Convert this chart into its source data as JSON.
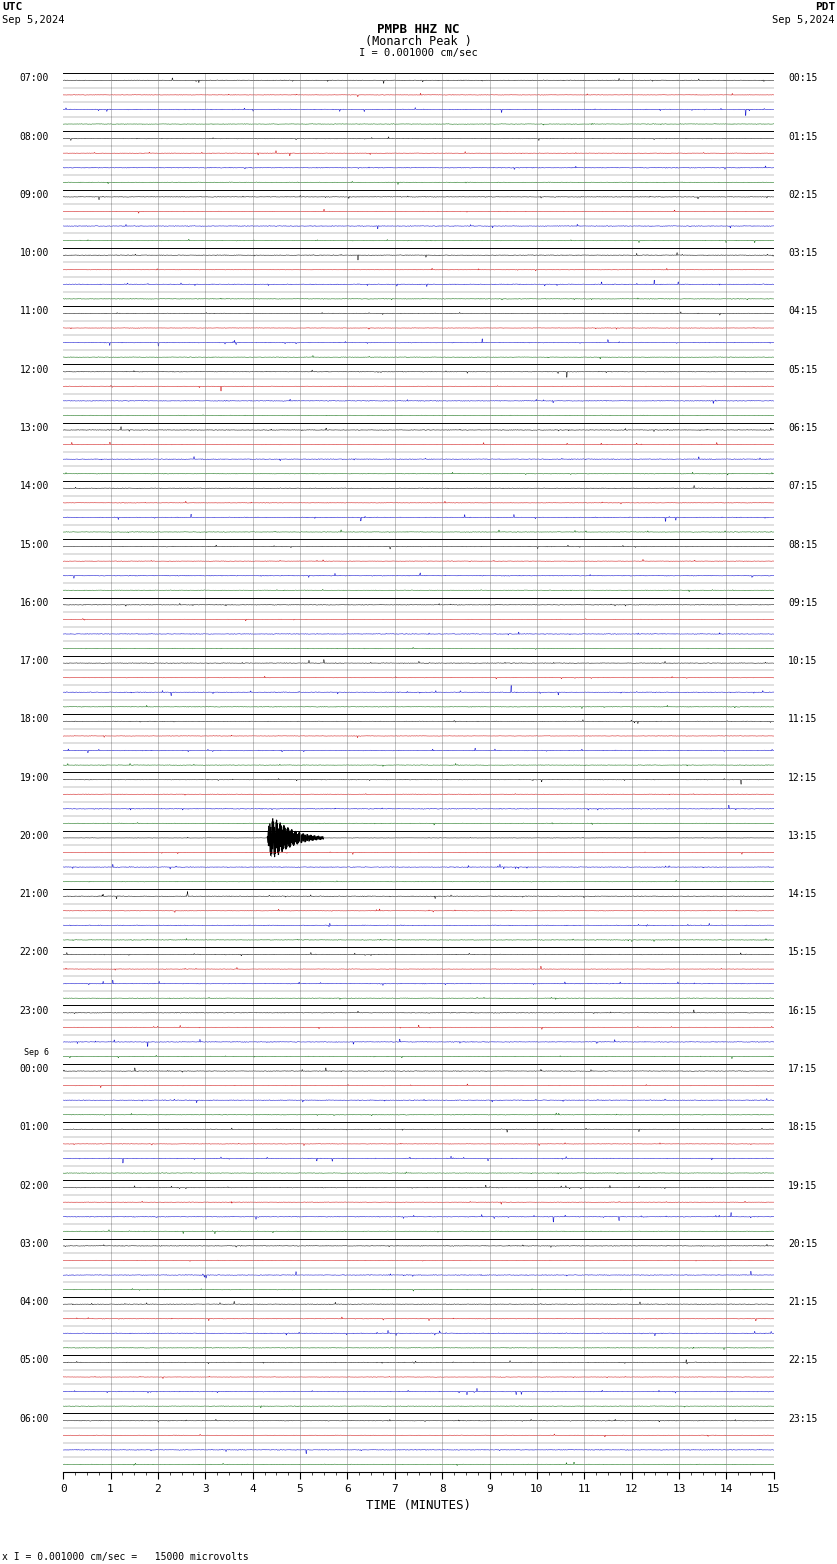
{
  "title_line1": "PMPB HHZ NC",
  "title_line2": "(Monarch Peak )",
  "scale_text": "I = 0.001000 cm/sec",
  "utc_label": "UTC",
  "utc_date": "Sep 5,2024",
  "pdt_label": "PDT",
  "pdt_date": "Sep 5,2024",
  "bottom_label": "x I = 0.001000 cm/sec =   15000 microvolts",
  "xlabel": "TIME (MINUTES)",
  "background_color": "#ffffff",
  "trace_colors": [
    "#000000",
    "#cc0000",
    "#0000cc",
    "#006600"
  ],
  "grid_color": "#888888",
  "hour_label_color": "#000000",
  "rows": [
    {
      "utc": "07:00",
      "pdt": "00:15"
    },
    {
      "utc": "08:00",
      "pdt": "01:15"
    },
    {
      "utc": "09:00",
      "pdt": "02:15"
    },
    {
      "utc": "10:00",
      "pdt": "03:15"
    },
    {
      "utc": "11:00",
      "pdt": "04:15"
    },
    {
      "utc": "12:00",
      "pdt": "05:15"
    },
    {
      "utc": "13:00",
      "pdt": "06:15"
    },
    {
      "utc": "14:00",
      "pdt": "07:15"
    },
    {
      "utc": "15:00",
      "pdt": "08:15"
    },
    {
      "utc": "16:00",
      "pdt": "09:15"
    },
    {
      "utc": "17:00",
      "pdt": "10:15"
    },
    {
      "utc": "18:00",
      "pdt": "11:15"
    },
    {
      "utc": "19:00",
      "pdt": "12:15"
    },
    {
      "utc": "20:00",
      "pdt": "13:15"
    },
    {
      "utc": "21:00",
      "pdt": "14:15"
    },
    {
      "utc": "22:00",
      "pdt": "15:15"
    },
    {
      "utc": "23:00",
      "pdt": "16:15"
    },
    {
      "utc": "00:00",
      "pdt": "17:15",
      "day_change": true
    },
    {
      "utc": "01:00",
      "pdt": "18:15"
    },
    {
      "utc": "02:00",
      "pdt": "19:15"
    },
    {
      "utc": "03:00",
      "pdt": "20:15"
    },
    {
      "utc": "04:00",
      "pdt": "21:15"
    },
    {
      "utc": "05:00",
      "pdt": "22:15"
    },
    {
      "utc": "06:00",
      "pdt": "23:15"
    }
  ],
  "seismic_event_row": 13,
  "seismic_event_minute": 4.3,
  "noise_amplitude": 0.012,
  "spike_prob": 0.003,
  "spike_amplitude": 0.08,
  "event_amplitude": 0.55,
  "event_duration_minutes": 1.2,
  "fig_width": 8.5,
  "fig_height": 15.84,
  "dpi": 100
}
